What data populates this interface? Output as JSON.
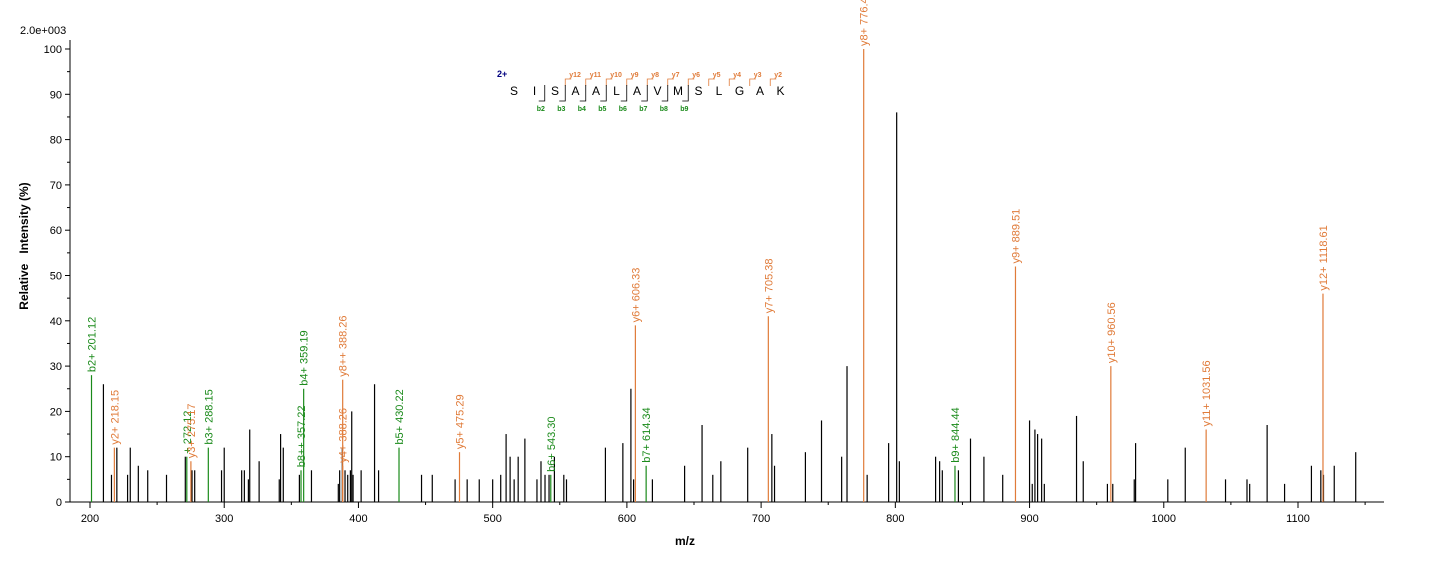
{
  "colors": {
    "y_ion": "#e07b39",
    "b_ion": "#1a8a1a",
    "other": "#000000",
    "charge": "#00007f",
    "axis": "#000000"
  },
  "chart_data": {
    "type": "bar",
    "scale_label": "2.0e+003",
    "xlabel": "m/z",
    "ylabel": "Relative   Intensity (%)",
    "xlim": [
      180,
      1165
    ],
    "ylim": [
      0,
      100
    ],
    "x_ticks": [
      "200",
      "300",
      "400",
      "500",
      "600",
      "700",
      "800",
      "900",
      "1000",
      "1100"
    ],
    "y_ticks": [
      "0",
      "10",
      "20",
      "30",
      "40",
      "50",
      "60",
      "70",
      "80",
      "90",
      "100"
    ],
    "labeled_peaks": [
      {
        "mz": 201.12,
        "intensity": 28,
        "ion": "b",
        "label": "b2+ 201.12"
      },
      {
        "mz": 218.15,
        "intensity": 12,
        "ion": "y",
        "label": "y2+ 218.15"
      },
      {
        "mz": 272.12,
        "intensity": 10,
        "ion": "b",
        "label": "+ 272.12"
      },
      {
        "mz": 275.17,
        "intensity": 9,
        "ion": "y",
        "label": "y3+ 275.17"
      },
      {
        "mz": 288.15,
        "intensity": 12,
        "ion": "b",
        "label": "b3+ 288.15"
      },
      {
        "mz": 357.22,
        "intensity": 7,
        "ion": "b",
        "label": "b8++ 357.22"
      },
      {
        "mz": 359.19,
        "intensity": 25,
        "ion": "b",
        "label": "b4+ 359.19"
      },
      {
        "mz": 388.26,
        "intensity": 8,
        "ion": "y",
        "label": "y4+ 388.26"
      },
      {
        "mz": 388.26,
        "intensity": 27,
        "ion": "y",
        "label": "y8++ 388.26"
      },
      {
        "mz": 430.22,
        "intensity": 12,
        "ion": "b",
        "label": "b5+ 430.22"
      },
      {
        "mz": 475.29,
        "intensity": 11,
        "ion": "y",
        "label": "y5+ 475.29"
      },
      {
        "mz": 543.3,
        "intensity": 6,
        "ion": "b",
        "label": "b6+ 543.30"
      },
      {
        "mz": 606.33,
        "intensity": 39,
        "ion": "y",
        "label": "y6+ 606.33"
      },
      {
        "mz": 614.34,
        "intensity": 8,
        "ion": "b",
        "label": "b7+ 614.34"
      },
      {
        "mz": 705.38,
        "intensity": 41,
        "ion": "y",
        "label": "y7+ 705.38"
      },
      {
        "mz": 776.43,
        "intensity": 100,
        "ion": "y",
        "label": "y8+ 776.43"
      },
      {
        "mz": 844.44,
        "intensity": 8,
        "ion": "b",
        "label": "b9+ 844.44"
      },
      {
        "mz": 889.51,
        "intensity": 52,
        "ion": "y",
        "label": "y9+ 889.51"
      },
      {
        "mz": 960.56,
        "intensity": 30,
        "ion": "y",
        "label": "y10+ 960.56"
      },
      {
        "mz": 1031.56,
        "intensity": 16,
        "ion": "y",
        "label": "y11+ 1031.56"
      },
      {
        "mz": 1118.61,
        "intensity": 46,
        "ion": "y",
        "label": "y12+ 1118.61"
      }
    ],
    "other_peaks": [
      [
        210,
        26
      ],
      [
        216,
        6
      ],
      [
        220,
        12
      ],
      [
        228,
        6
      ],
      [
        230,
        12
      ],
      [
        236,
        8
      ],
      [
        243,
        7
      ],
      [
        257,
        6
      ],
      [
        271,
        10
      ],
      [
        276,
        7
      ],
      [
        278,
        7
      ],
      [
        298,
        7
      ],
      [
        300,
        12
      ],
      [
        313,
        7
      ],
      [
        315,
        7
      ],
      [
        318,
        5
      ],
      [
        319,
        16
      ],
      [
        326,
        9
      ],
      [
        341,
        5
      ],
      [
        342,
        15
      ],
      [
        344,
        12
      ],
      [
        356,
        6
      ],
      [
        365,
        7
      ],
      [
        385,
        4
      ],
      [
        386,
        7
      ],
      [
        388,
        12
      ],
      [
        390,
        7
      ],
      [
        392,
        6
      ],
      [
        394,
        7
      ],
      [
        395,
        20
      ],
      [
        396,
        6
      ],
      [
        402,
        7
      ],
      [
        412,
        26
      ],
      [
        415,
        7
      ],
      [
        447,
        6
      ],
      [
        455,
        6
      ],
      [
        472,
        5
      ],
      [
        481,
        5
      ],
      [
        490,
        5
      ],
      [
        500,
        5
      ],
      [
        506,
        6
      ],
      [
        510,
        15
      ],
      [
        513,
        10
      ],
      [
        516,
        5
      ],
      [
        519,
        10
      ],
      [
        524,
        14
      ],
      [
        533,
        5
      ],
      [
        536,
        9
      ],
      [
        539,
        6
      ],
      [
        542,
        6
      ],
      [
        546,
        10
      ],
      [
        553,
        6
      ],
      [
        555,
        5
      ],
      [
        584,
        12
      ],
      [
        597,
        13
      ],
      [
        603,
        25
      ],
      [
        605,
        5
      ],
      [
        619,
        5
      ],
      [
        643,
        8
      ],
      [
        656,
        17
      ],
      [
        664,
        6
      ],
      [
        670,
        9
      ],
      [
        690,
        12
      ],
      [
        708,
        15
      ],
      [
        710,
        8
      ],
      [
        733,
        11
      ],
      [
        745,
        18
      ],
      [
        760,
        10
      ],
      [
        764,
        30
      ],
      [
        779,
        6
      ],
      [
        795,
        13
      ],
      [
        801,
        86
      ],
      [
        803,
        9
      ],
      [
        830,
        10
      ],
      [
        833,
        9
      ],
      [
        835,
        7
      ],
      [
        847,
        7
      ],
      [
        856,
        14
      ],
      [
        866,
        10
      ],
      [
        880,
        6
      ],
      [
        900,
        18
      ],
      [
        902,
        4
      ],
      [
        904,
        16
      ],
      [
        906,
        15
      ],
      [
        909,
        14
      ],
      [
        911,
        4
      ],
      [
        935,
        19
      ],
      [
        940,
        9
      ],
      [
        958,
        4
      ],
      [
        962,
        4
      ],
      [
        978,
        5
      ],
      [
        979,
        13
      ],
      [
        1003,
        5
      ],
      [
        1016,
        12
      ],
      [
        1046,
        5
      ],
      [
        1062,
        5
      ],
      [
        1064,
        4
      ],
      [
        1077,
        17
      ],
      [
        1090,
        4
      ],
      [
        1110,
        8
      ],
      [
        1117,
        7
      ],
      [
        1119,
        6
      ],
      [
        1127,
        8
      ],
      [
        1143,
        11
      ]
    ]
  },
  "sequence": {
    "charge": "2+",
    "residues": [
      "S",
      "I",
      "S",
      "A",
      "A",
      "L",
      "A",
      "V",
      "M",
      "S",
      "L",
      "G",
      "A",
      "K"
    ],
    "y_labels": [
      "y12",
      "y11",
      "y10",
      "y9",
      "y8",
      "y7",
      "y6",
      "y5",
      "y4",
      "y3",
      "y2"
    ],
    "b_labels": [
      "b2",
      "b3",
      "b4",
      "b5",
      "b6",
      "b7",
      "b8",
      "b9"
    ]
  }
}
